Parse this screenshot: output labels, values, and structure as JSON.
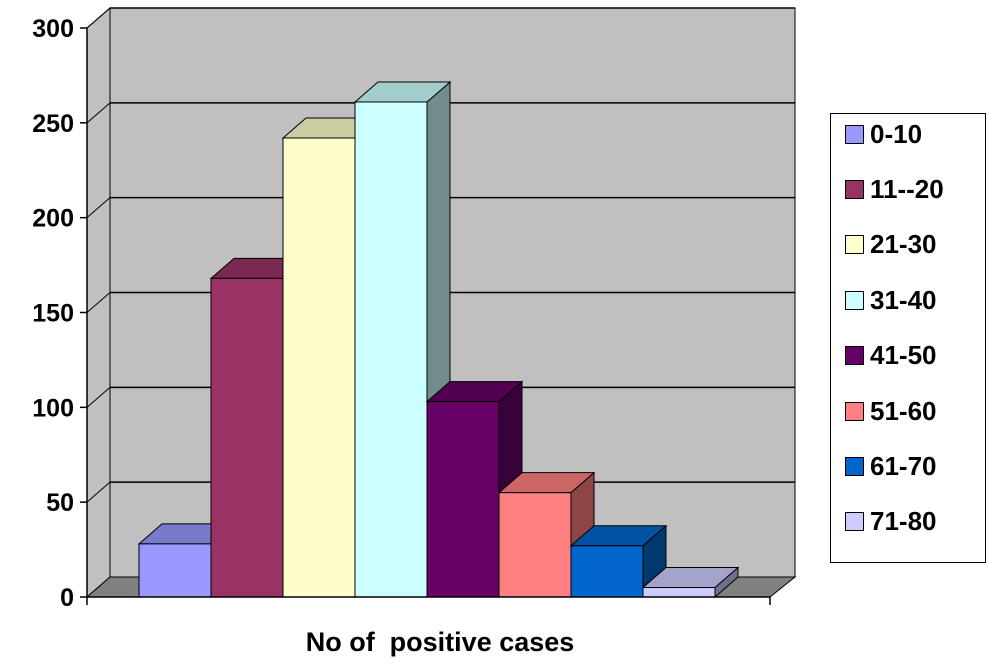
{
  "chart_data": {
    "type": "bar",
    "style": "3d-clustered-column",
    "categories": [
      ""
    ],
    "series": [
      {
        "name": "0-10",
        "values": [
          28
        ],
        "color": "#9999FF"
      },
      {
        "name": "11--20",
        "values": [
          168
        ],
        "color": "#993366"
      },
      {
        "name": "21-30",
        "values": [
          242
        ],
        "color": "#FFFFCC"
      },
      {
        "name": "31-40",
        "values": [
          261
        ],
        "color": "#CCFFFF"
      },
      {
        "name": "41-50",
        "values": [
          103
        ],
        "color": "#660066"
      },
      {
        "name": "51-60",
        "values": [
          55
        ],
        "color": "#FF8080"
      },
      {
        "name": "61-70",
        "values": [
          27
        ],
        "color": "#0066CC"
      },
      {
        "name": "71-80",
        "values": [
          5
        ],
        "color": "#CCCCFF"
      }
    ],
    "xlabel": "No of  positive cases",
    "ylabel": "",
    "ylim": [
      0,
      300
    ],
    "yticks": [
      "0",
      "50",
      "100",
      "150",
      "200",
      "250",
      "300"
    ],
    "grid": true,
    "legend_position": "right",
    "wall_color": "#C0C0C0",
    "floor_color": "#808080"
  }
}
